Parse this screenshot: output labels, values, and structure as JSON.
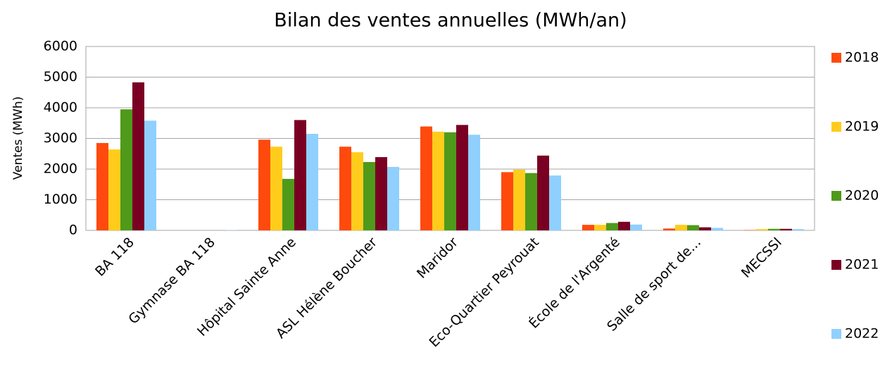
{
  "chart_data": {
    "type": "bar",
    "title": "Bilan des ventes annuelles (MWh/an)",
    "y_label": "Ventes (MWh)",
    "categories": [
      "BA 118",
      "Gymnase BA 118",
      "Hôpital Sainte Anne",
      "ASL Hélène Boucher",
      "Maridor",
      "Eco-Quartier Peyrouat",
      "École de l'Argenté",
      "Salle de sport de...",
      "MECSSI"
    ],
    "series": [
      {
        "name": "2018",
        "color": "#ff4a0e",
        "values": [
          2850,
          0,
          2960,
          2730,
          3390,
          1900,
          180,
          60,
          10
        ]
      },
      {
        "name": "2019",
        "color": "#ffcc1c",
        "values": [
          2640,
          0,
          2730,
          2550,
          3220,
          1980,
          180,
          180,
          40
        ]
      },
      {
        "name": "2020",
        "color": "#4f9a1a",
        "values": [
          3950,
          0,
          1680,
          2230,
          3200,
          1870,
          240,
          170,
          50
        ]
      },
      {
        "name": "2021",
        "color": "#7a0023",
        "values": [
          4830,
          0,
          3600,
          2390,
          3440,
          2440,
          280,
          100,
          50
        ]
      },
      {
        "name": "2022",
        "color": "#8fd0ff",
        "values": [
          3580,
          10,
          3150,
          2070,
          3120,
          1790,
          190,
          80,
          40
        ]
      }
    ],
    "ylim": [
      0,
      6000
    ],
    "yticks": [
      0,
      1000,
      2000,
      3000,
      4000,
      5000,
      6000
    ],
    "grid": true,
    "legend": "right"
  }
}
